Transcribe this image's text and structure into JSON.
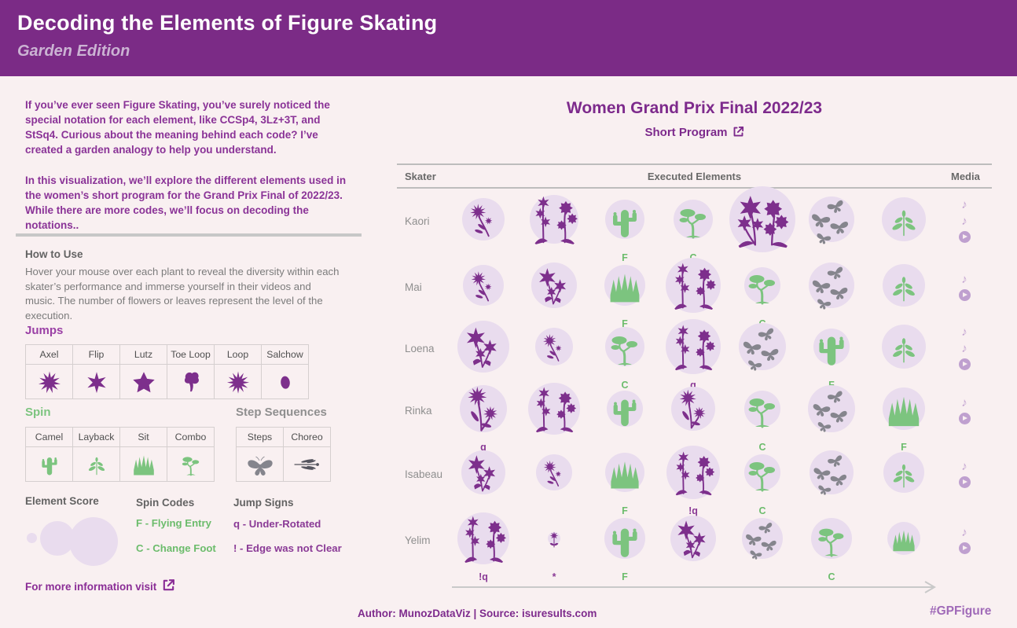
{
  "header": {
    "title": "Decoding the Elements of Figure Skating",
    "subtitle": "Garden Edition"
  },
  "intro": {
    "p1": "If you’ve ever seen Figure Skating, you’ve surely noticed the special notation for each element, like CCSp4, 3Lz+3T, and StSq4. Curious about the meaning behind each code? I’ve created a garden analogy to help you understand.",
    "p2": "In this visualization, we’ll explore the different elements used in the women’s short program for the Grand Prix Final of 2022/23. While there are more codes, we’ll focus on decoding the notations.."
  },
  "how_to_use": {
    "title": "How to Use",
    "body": "Hover your mouse over each plant to reveal the diversity within each skater’s performance and immerse yourself in their videos and music. The number of flowers or leaves represent the level of the execution."
  },
  "legend": {
    "jumps": {
      "title": "Jumps",
      "kind": "jump",
      "items": [
        {
          "label": "Axel",
          "icon": "aster-head"
        },
        {
          "label": "Flip",
          "icon": "flower6"
        },
        {
          "label": "Lutz",
          "icon": "star5"
        },
        {
          "label": "Toe Loop",
          "icon": "tulip"
        },
        {
          "label": "Loop",
          "icon": "aster12"
        },
        {
          "label": "Salchow",
          "icon": "bud"
        }
      ]
    },
    "spin": {
      "title": "Spin",
      "kind": "spin",
      "items": [
        {
          "label": "Camel",
          "icon": "cactus"
        },
        {
          "label": "Layback",
          "icon": "sprout"
        },
        {
          "label": "Sit",
          "icon": "grass"
        },
        {
          "label": "Combo",
          "icon": "bonsai"
        }
      ]
    },
    "steps": {
      "title": "Step Sequences",
      "kind": "steps",
      "items": [
        {
          "label": "Steps",
          "icon": "butterfly"
        },
        {
          "label": "Choreo",
          "icon": "dragonfly"
        }
      ]
    },
    "element_score_title": "Element Score",
    "spin_codes": {
      "title": "Spin Codes",
      "items": [
        "F - Flying Entry",
        "C - Change Foot"
      ]
    },
    "jump_signs": {
      "title": "Jump Signs",
      "items": [
        "q - Under-Rotated",
        "! - Edge was not Clear"
      ]
    },
    "more_info": "For more information visit"
  },
  "chart_data": {
    "type": "table",
    "title": "Women Grand Prix Final 2022/23",
    "subtitle": "Short Program",
    "columns": [
      "Skater",
      "Executed Elements",
      "Media"
    ],
    "rows": [
      {
        "skater": "Kaori",
        "media": [
          "note",
          "note",
          "play"
        ],
        "elements": [
          {
            "icon": "flower-spray",
            "kind": "jump",
            "circle": 54,
            "size": 48,
            "code": ""
          },
          {
            "icon": "tall-flowers",
            "kind": "jump",
            "circle": 62,
            "size": 68,
            "code": ""
          },
          {
            "icon": "cactus",
            "kind": "spin",
            "circle": 50,
            "size": 50,
            "code": "F"
          },
          {
            "icon": "bonsai",
            "kind": "spin",
            "circle": 50,
            "size": 50,
            "code": "C"
          },
          {
            "icon": "flower-cluster",
            "kind": "jump",
            "circle": 84,
            "size": 76,
            "code": ""
          },
          {
            "icon": "butterflies",
            "kind": "steps",
            "circle": 58,
            "size": 62,
            "code": ""
          },
          {
            "icon": "sprout",
            "kind": "spin",
            "circle": 56,
            "size": 46,
            "code": ""
          }
        ]
      },
      {
        "skater": "Mai",
        "media": [
          "note",
          "play"
        ],
        "elements": [
          {
            "icon": "flower-spray",
            "kind": "jump",
            "circle": 52,
            "size": 44,
            "code": ""
          },
          {
            "icon": "star-flowers",
            "kind": "jump",
            "circle": 58,
            "size": 54,
            "code": ""
          },
          {
            "icon": "grass",
            "kind": "spin",
            "circle": 52,
            "size": 46,
            "code": "F"
          },
          {
            "icon": "tall-flowers",
            "kind": "jump",
            "circle": 70,
            "size": 66,
            "code": ""
          },
          {
            "icon": "bonsai",
            "kind": "spin",
            "circle": 46,
            "size": 50,
            "code": "C"
          },
          {
            "icon": "butterflies",
            "kind": "steps",
            "circle": 58,
            "size": 60,
            "code": ""
          },
          {
            "icon": "sprout",
            "kind": "spin",
            "circle": 54,
            "size": 44,
            "code": ""
          }
        ]
      },
      {
        "skater": "Loena",
        "media": [
          "note",
          "note",
          "play"
        ],
        "elements": [
          {
            "icon": "star-flowers",
            "kind": "jump",
            "circle": 66,
            "size": 60,
            "code": ""
          },
          {
            "icon": "flower-spray",
            "kind": "jump",
            "circle": 48,
            "size": 40,
            "code": ""
          },
          {
            "icon": "bonsai",
            "kind": "spin",
            "circle": 50,
            "size": 50,
            "code": "C"
          },
          {
            "icon": "tall-flowers",
            "kind": "jump",
            "circle": 70,
            "size": 64,
            "code": "q"
          },
          {
            "icon": "butterflies",
            "kind": "steps",
            "circle": 60,
            "size": 60,
            "code": ""
          },
          {
            "icon": "cactus",
            "kind": "spin",
            "circle": 46,
            "size": 52,
            "code": "F"
          },
          {
            "icon": "sprout",
            "kind": "spin",
            "circle": 56,
            "size": 44,
            "code": ""
          }
        ]
      },
      {
        "skater": "Rinka",
        "media": [
          "note",
          "play"
        ],
        "elements": [
          {
            "icon": "flower-duo",
            "kind": "jump",
            "circle": 60,
            "size": 64,
            "code": "q"
          },
          {
            "icon": "tall-flowers",
            "kind": "jump",
            "circle": 66,
            "size": 64,
            "code": ""
          },
          {
            "icon": "cactus",
            "kind": "spin",
            "circle": 46,
            "size": 48,
            "code": ""
          },
          {
            "icon": "flower-duo",
            "kind": "jump",
            "circle": 56,
            "size": 56,
            "code": ""
          },
          {
            "icon": "bonsai",
            "kind": "spin",
            "circle": 46,
            "size": 50,
            "code": "C"
          },
          {
            "icon": "butterflies",
            "kind": "steps",
            "circle": 60,
            "size": 58,
            "code": ""
          },
          {
            "icon": "grass",
            "kind": "spin",
            "circle": 54,
            "size": 48,
            "code": "F"
          }
        ]
      },
      {
        "skater": "Isabeau",
        "media": [
          "note",
          "play"
        ],
        "elements": [
          {
            "icon": "star-flowers",
            "kind": "jump",
            "circle": 56,
            "size": 54,
            "code": ""
          },
          {
            "icon": "flower-spray",
            "kind": "jump",
            "circle": 46,
            "size": 38,
            "code": ""
          },
          {
            "icon": "grass",
            "kind": "spin",
            "circle": 50,
            "size": 44,
            "code": "F"
          },
          {
            "icon": "tall-flowers",
            "kind": "jump",
            "circle": 68,
            "size": 62,
            "code": "!q"
          },
          {
            "icon": "bonsai",
            "kind": "spin",
            "circle": 46,
            "size": 50,
            "code": "C"
          },
          {
            "icon": "butterflies",
            "kind": "steps",
            "circle": 56,
            "size": 56,
            "code": ""
          },
          {
            "icon": "sprout",
            "kind": "spin",
            "circle": 52,
            "size": 42,
            "code": ""
          }
        ]
      },
      {
        "skater": "Yelim",
        "media": [
          "note",
          "play"
        ],
        "elements": [
          {
            "icon": "tall-flowers",
            "kind": "jump",
            "circle": 66,
            "size": 66,
            "code": "!q"
          },
          {
            "icon": "small-flower",
            "kind": "jump",
            "circle": 16,
            "size": 30,
            "code": "*"
          },
          {
            "icon": "cactus",
            "kind": "spin",
            "circle": 52,
            "size": 52,
            "code": "F"
          },
          {
            "icon": "star-flowers",
            "kind": "jump",
            "circle": 58,
            "size": 56,
            "code": ""
          },
          {
            "icon": "butterflies",
            "kind": "steps",
            "circle": 52,
            "size": 52,
            "code": ""
          },
          {
            "icon": "bonsai",
            "kind": "spin",
            "circle": 52,
            "size": 48,
            "code": "C"
          },
          {
            "icon": "grass",
            "kind": "spin",
            "circle": 42,
            "size": 34,
            "code": ""
          }
        ]
      }
    ]
  },
  "footer": {
    "credit": "Author: MunozDataViz | Source: isuresults.com",
    "hashtag": "#GPFigure"
  },
  "colors": {
    "header_bg": "#7b2b86",
    "jump": "#7d2f8c",
    "spin": "#7cc47f",
    "steps": "#85858d",
    "dragonfly": "#54545e",
    "circle": "#e9dcee",
    "media": "#c3a4d1",
    "code_green": "#6cbc6c",
    "code_purple": "#8a3a96",
    "accent_text": "#8a3397"
  }
}
